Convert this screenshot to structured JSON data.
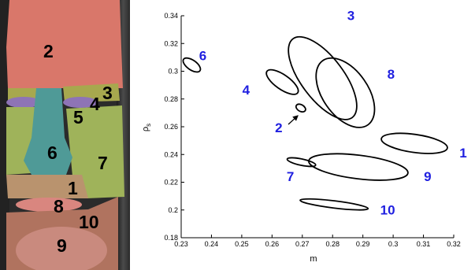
{
  "colors": {
    "label_blue": "#1f1fe0",
    "ellipse_stroke": "#000000",
    "forehead": "#d9776a",
    "nose": "#4f9a97",
    "cheek": "#9fb35a",
    "brow": "#a7a84e",
    "lid": "#8e74b6",
    "mouth": "#d9867f",
    "chin": "#c98a7e"
  },
  "face_panel": {
    "region_labels": [
      {
        "id": "2",
        "text": "2"
      },
      {
        "id": "3",
        "text": "3"
      },
      {
        "id": "4",
        "text": "4"
      },
      {
        "id": "5",
        "text": "5"
      },
      {
        "id": "6",
        "text": "6"
      },
      {
        "id": "7",
        "text": "7"
      },
      {
        "id": "1",
        "text": "1"
      },
      {
        "id": "8",
        "text": "8"
      },
      {
        "id": "10",
        "text": "10"
      },
      {
        "id": "9",
        "text": "9"
      }
    ]
  },
  "chart_data": {
    "type": "scatter",
    "title": "",
    "xlabel": "m",
    "ylabel": "ρ",
    "ylabel_subscript": "s",
    "xlim": [
      0.23,
      0.32
    ],
    "ylim": [
      0.18,
      0.34
    ],
    "xticks": [
      "0.23",
      "0.24",
      "0.25",
      "0.26",
      "0.27",
      "0.28",
      "0.29",
      "0.3",
      "0.31",
      "0.32"
    ],
    "yticks": [
      "0.18",
      "0.2",
      "0.22",
      "0.24",
      "0.26",
      "0.28",
      "0.3",
      "0.32",
      "0.34"
    ],
    "grid": false,
    "ellipses": [
      {
        "label": "1",
        "cx": 0.307,
        "cy": 0.248,
        "semi_x": 0.011,
        "semi_y": 0.0065,
        "angle_deg": -8
      },
      {
        "label": "2",
        "cx": 0.2695,
        "cy": 0.2735,
        "semi_x": 0.0017,
        "semi_y": 0.0024,
        "angle_deg": -30
      },
      {
        "label": "3",
        "cx": 0.2767,
        "cy": 0.295,
        "semi_x": 0.007,
        "semi_y": 0.0355,
        "angle_deg": 37
      },
      {
        "label": "4",
        "cx": 0.2634,
        "cy": 0.2922,
        "semi_x": 0.0062,
        "semi_y": 0.0052,
        "angle_deg": -35
      },
      {
        "label": "6",
        "cx": 0.2335,
        "cy": 0.3045,
        "semi_x": 0.0033,
        "semi_y": 0.0035,
        "angle_deg": -35
      },
      {
        "label": "7",
        "cx": 0.2697,
        "cy": 0.2345,
        "semi_x": 0.0048,
        "semi_y": 0.0023,
        "angle_deg": -12
      },
      {
        "label": "8",
        "cx": 0.2842,
        "cy": 0.2845,
        "semi_x": 0.0075,
        "semi_y": 0.0283,
        "angle_deg": 35
      },
      {
        "label": "9",
        "cx": 0.2885,
        "cy": 0.231,
        "semi_x": 0.0165,
        "semi_y": 0.0085,
        "angle_deg": -7
      },
      {
        "label": "10",
        "cx": 0.2805,
        "cy": 0.204,
        "semi_x": 0.0113,
        "semi_y": 0.0026,
        "angle_deg": -7
      }
    ]
  }
}
